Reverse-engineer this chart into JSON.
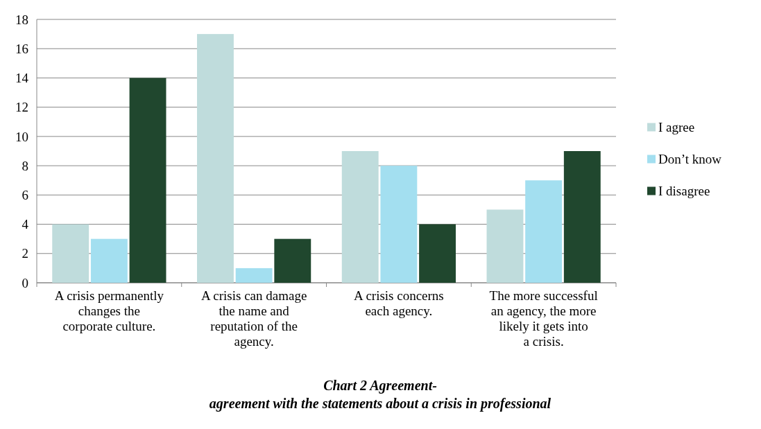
{
  "chart_data": {
    "type": "bar",
    "categories": [
      "A crisis permanently changes the corporate culture.",
      "A crisis can damage the name and reputation of the agency.",
      "A crisis concerns each agency.",
      "The more successful an agency, the more likely it gets into a crisis."
    ],
    "series": [
      {
        "name": "I agree",
        "color": "#bfdcdc",
        "values": [
          4,
          17,
          9,
          5
        ]
      },
      {
        "name": "Don’t know",
        "color": "#a3dff0",
        "values": [
          3,
          1,
          8,
          7
        ]
      },
      {
        "name": "I disagree",
        "color": "#20472e",
        "values": [
          14,
          3,
          4,
          9
        ]
      }
    ],
    "ylim": [
      0,
      18
    ],
    "yticks": [
      0,
      2,
      4,
      6,
      8,
      10,
      12,
      14,
      16,
      18
    ],
    "grid": "y",
    "legend": "right",
    "annotations": [
      "Chart 2 Agreement-",
      "agreement with the statements about a crisis in professional"
    ]
  }
}
